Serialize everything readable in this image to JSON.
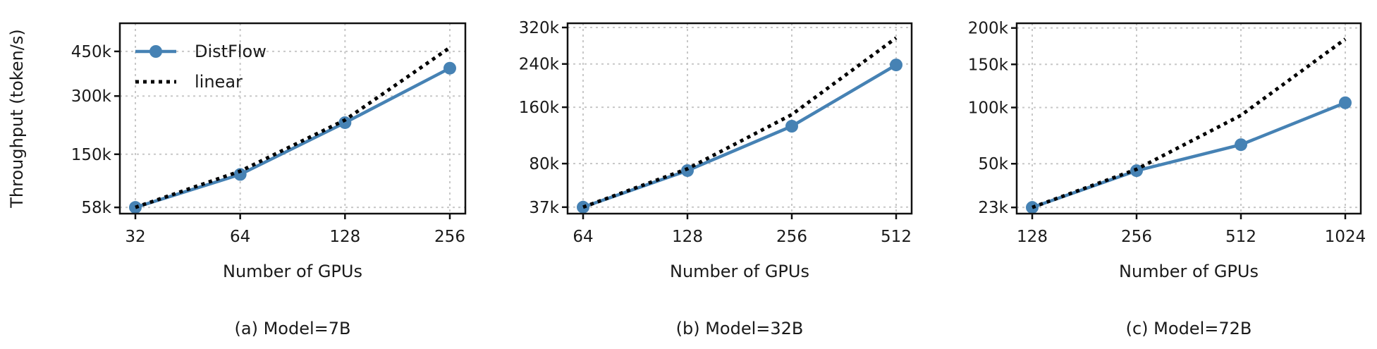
{
  "ylabel": "Throughput (token/s)",
  "chart_data": [
    {
      "type": "line",
      "caption": "(a) Model=7B",
      "xlabel": "Number of GPUs",
      "x": [
        32,
        64,
        128,
        256
      ],
      "x_tick_labels": [
        "32",
        "64",
        "128",
        "256"
      ],
      "x_scale": "log2",
      "y_scale": "sqrt",
      "y_ticks": [
        58000,
        150000,
        300000,
        450000
      ],
      "y_tick_labels": [
        "58k",
        "150k",
        "300k",
        "450k"
      ],
      "ylim": [
        50000,
        560000
      ],
      "grid": true,
      "legend": "top-left",
      "series": [
        {
          "name": "DistFlow",
          "style": "solid-marker",
          "color": "#4682b4",
          "values": [
            58000,
            110000,
            225000,
            390000
          ]
        },
        {
          "name": "linear",
          "style": "dotted",
          "color": "#000000",
          "values": [
            58000,
            116000,
            232000,
            464000
          ]
        }
      ]
    },
    {
      "type": "line",
      "caption": "(b) Model=32B",
      "xlabel": "Number of GPUs",
      "x": [
        64,
        128,
        256,
        512
      ],
      "x_tick_labels": [
        "64",
        "128",
        "256",
        "512"
      ],
      "x_scale": "log2",
      "y_scale": "sqrt",
      "y_ticks": [
        37000,
        80000,
        160000,
        240000,
        320000
      ],
      "y_tick_labels": [
        "37k",
        "80k",
        "160k",
        "240k",
        "320k"
      ],
      "ylim": [
        32000,
        330000
      ],
      "grid": true,
      "legend": "none",
      "series": [
        {
          "name": "DistFlow",
          "style": "solid-marker",
          "color": "#4682b4",
          "values": [
            37000,
            72000,
            130000,
            238000
          ]
        },
        {
          "name": "linear",
          "style": "dotted",
          "color": "#000000",
          "values": [
            37000,
            74000,
            148000,
            296000
          ]
        }
      ]
    },
    {
      "type": "line",
      "caption": "(c) Model=72B",
      "xlabel": "Number of GPUs",
      "x": [
        128,
        256,
        512,
        1024
      ],
      "x_tick_labels": [
        "128",
        "256",
        "512",
        "1024"
      ],
      "x_scale": "log2",
      "y_scale": "sqrt",
      "y_ticks": [
        23000,
        50000,
        100000,
        150000,
        200000
      ],
      "y_tick_labels": [
        "23k",
        "50k",
        "100k",
        "150k",
        "200k"
      ],
      "ylim": [
        20000,
        207000
      ],
      "grid": true,
      "legend": "none",
      "series": [
        {
          "name": "DistFlow",
          "style": "solid-marker",
          "color": "#4682b4",
          "values": [
            23000,
            45000,
            65000,
            105000
          ]
        },
        {
          "name": "linear",
          "style": "dotted",
          "color": "#000000",
          "values": [
            23000,
            46000,
            92000,
            184000
          ]
        }
      ]
    }
  ]
}
